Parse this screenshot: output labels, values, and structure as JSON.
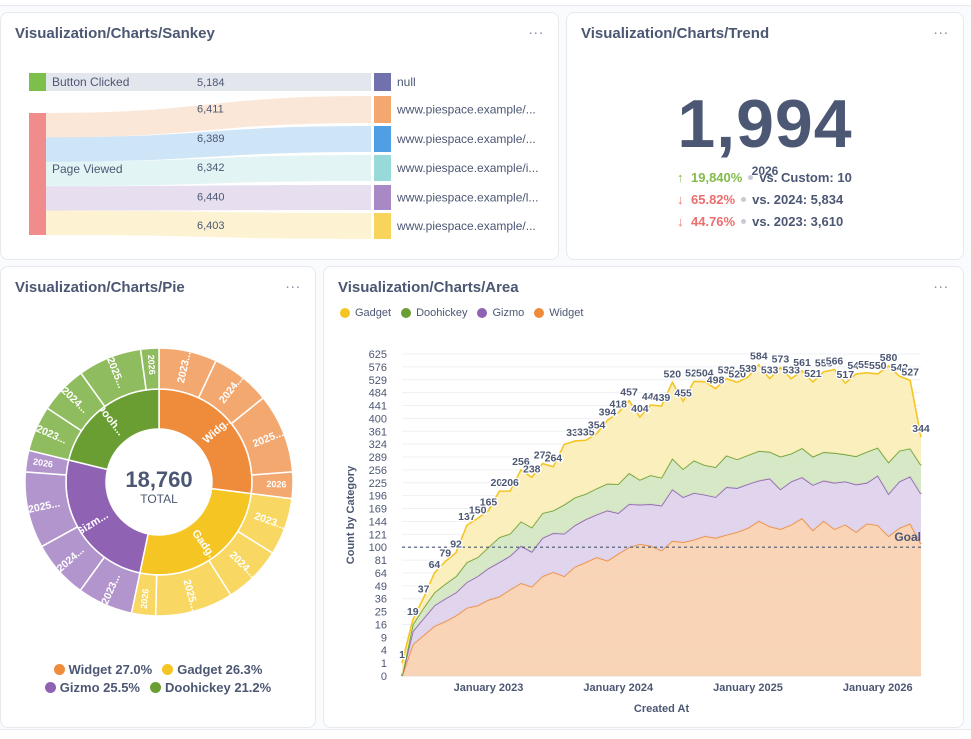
{
  "colors": {
    "widget": "#ef8c3c",
    "gadget": "#f5c524",
    "gizmo": "#9062b3",
    "doohickey": "#6a9e33",
    "up": "#84bb4c",
    "down": "#ed6e6e"
  },
  "sankey": {
    "title": "Visualization/Charts/Sankey",
    "menu": "...",
    "sources": [
      {
        "label": "Button Clicked",
        "color": "#7cc04b"
      },
      {
        "label": "Page Viewed",
        "color": "#f08c8c"
      }
    ],
    "flows": [
      {
        "value": "5,184"
      },
      {
        "value": "6,411"
      },
      {
        "value": "6,389"
      },
      {
        "value": "6,342"
      },
      {
        "value": "6,440"
      },
      {
        "value": "6,403"
      }
    ],
    "targets": [
      {
        "label": "null",
        "color": "#7172ad"
      },
      {
        "label": "www.piespace.example/...",
        "color": "#f2a86f"
      },
      {
        "label": "www.piespace.example/...",
        "color": "#509ee3"
      },
      {
        "label": "www.piespace.example/i...",
        "color": "#98d9d9"
      },
      {
        "label": "www.piespace.example/l...",
        "color": "#a989c5"
      },
      {
        "label": "www.piespace.example/...",
        "color": "#f9d45c"
      }
    ]
  },
  "trend": {
    "title": "Visualization/Charts/Trend",
    "menu": "...",
    "value": "1,994",
    "period": "2026",
    "comparisons": [
      {
        "arrow": "↑",
        "pct": "19,840%",
        "text": "vs. Custom: 10",
        "direction": "up"
      },
      {
        "arrow": "↓",
        "pct": "65.82%",
        "text": "vs. 2024: 5,834",
        "direction": "down"
      },
      {
        "arrow": "↓",
        "pct": "44.76%",
        "text": "vs. 2023: 3,610",
        "direction": "down"
      }
    ]
  },
  "pie": {
    "title": "Visualization/Charts/Pie",
    "menu": "...",
    "total_value": "18,760",
    "total_label": "TOTAL",
    "legend": [
      {
        "label": "Widget 27.0%",
        "color": "#ef8c3c"
      },
      {
        "label": "Gadget 26.3%",
        "color": "#f5c524"
      },
      {
        "label": "Gizmo 25.5%",
        "color": "#9062b3"
      },
      {
        "label": "Doohickey 21.2%",
        "color": "#6a9e33"
      }
    ],
    "inner": [
      {
        "label": "Widg...",
        "pct": 27.0,
        "color": "#ef8c3c"
      },
      {
        "label": "Gadg...",
        "pct": 26.3,
        "color": "#f5c524"
      },
      {
        "label": "Gizm...",
        "pct": 25.5,
        "color": "#9062b3"
      },
      {
        "label": "Dooh...",
        "pct": 21.2,
        "color": "#6a9e33"
      }
    ],
    "outer": [
      {
        "label": "2023...",
        "pct": 7.0,
        "color": "#f3a870"
      },
      {
        "label": "2024...",
        "pct": 7.2,
        "color": "#f3a870"
      },
      {
        "label": "2025...",
        "pct": 9.6,
        "color": "#f3a870"
      },
      {
        "label": "2026...",
        "pct": 3.2,
        "color": "#f3a870"
      },
      {
        "label": "2023...",
        "pct": 6.9,
        "color": "#f8d862"
      },
      {
        "label": "2024...",
        "pct": 7.1,
        "color": "#f8d862"
      },
      {
        "label": "2025...",
        "pct": 9.4,
        "color": "#f8d862"
      },
      {
        "label": "2026...",
        "pct": 2.9,
        "color": "#f8d862"
      },
      {
        "label": "2023...",
        "pct": 6.7,
        "color": "#b295cd"
      },
      {
        "label": "2024...",
        "pct": 7.0,
        "color": "#b295cd"
      },
      {
        "label": "2025...",
        "pct": 9.2,
        "color": "#b295cd"
      },
      {
        "label": "2026...",
        "pct": 2.6,
        "color": "#b295cd"
      },
      {
        "label": "2023...",
        "pct": 5.5,
        "color": "#8fbc5e"
      },
      {
        "label": "2024...",
        "pct": 5.8,
        "color": "#8fbc5e"
      },
      {
        "label": "2025...",
        "pct": 7.7,
        "color": "#8fbc5e"
      },
      {
        "label": "2026...",
        "pct": 2.2,
        "color": "#8fbc5e"
      }
    ]
  },
  "area": {
    "title": "Visualization/Charts/Area",
    "menu": "...",
    "legend": [
      {
        "label": "Gadget",
        "color": "#f5c524"
      },
      {
        "label": "Doohickey",
        "color": "#6a9e33"
      },
      {
        "label": "Gizmo",
        "color": "#9062b3"
      },
      {
        "label": "Widget",
        "color": "#ef8c3c"
      }
    ]
  },
  "chart_data": {
    "type": "area",
    "stacked": true,
    "title": "Visualization/Charts/Area",
    "xlabel": "Created At",
    "ylabel": "Count by Category",
    "yscale": "pow",
    "ylim": [
      0,
      625
    ],
    "y_ticks": [
      0,
      1,
      4,
      9,
      16,
      25,
      36,
      49,
      64,
      81,
      100,
      121,
      144,
      169,
      196,
      225,
      256,
      289,
      324,
      361,
      400,
      441,
      484,
      529,
      576,
      625
    ],
    "x_ticks": [
      {
        "label": "January 2023",
        "index": 8
      },
      {
        "label": "January 2024",
        "index": 20
      },
      {
        "label": "January 2025",
        "index": 32
      },
      {
        "label": "January 2026",
        "index": 44
      }
    ],
    "goal": {
      "value": 100,
      "label": "Goal"
    },
    "total_labels": [
      {
        "index": 0,
        "text": "1"
      },
      {
        "index": 1,
        "text": "19"
      },
      {
        "index": 2,
        "text": "37"
      },
      {
        "index": 3,
        "text": "64"
      },
      {
        "index": 4,
        "text": "79"
      },
      {
        "index": 5,
        "text": "92"
      },
      {
        "index": 6,
        "text": "137"
      },
      {
        "index": 7,
        "text": "150"
      },
      {
        "index": 8,
        "text": "165"
      },
      {
        "index": 9,
        "text": "206"
      },
      {
        "index": 10,
        "text": "206"
      },
      {
        "index": 11,
        "text": "256"
      },
      {
        "index": 12,
        "text": "238"
      },
      {
        "index": 13,
        "text": "272"
      },
      {
        "index": 14,
        "text": "264"
      },
      {
        "index": 16,
        "text": "333"
      },
      {
        "index": 17,
        "text": "335"
      },
      {
        "index": 18,
        "text": "354"
      },
      {
        "index": 19,
        "text": "394"
      },
      {
        "index": 20,
        "text": "418"
      },
      {
        "index": 21,
        "text": "457"
      },
      {
        "index": 22,
        "text": "404"
      },
      {
        "index": 23,
        "text": "443"
      },
      {
        "index": 24,
        "text": "439"
      },
      {
        "index": 25,
        "text": "520"
      },
      {
        "index": 26,
        "text": "455"
      },
      {
        "index": 27,
        "text": "523"
      },
      {
        "index": 28,
        "text": "504"
      },
      {
        "index": 29,
        "text": "498"
      },
      {
        "index": 30,
        "text": "533"
      },
      {
        "index": 31,
        "text": "520"
      },
      {
        "index": 32,
        "text": "539"
      },
      {
        "index": 33,
        "text": "584"
      },
      {
        "index": 34,
        "text": "533"
      },
      {
        "index": 35,
        "text": "573"
      },
      {
        "index": 36,
        "text": "533"
      },
      {
        "index": 37,
        "text": "561"
      },
      {
        "index": 38,
        "text": "521"
      },
      {
        "index": 39,
        "text": "558"
      },
      {
        "index": 40,
        "text": "566"
      },
      {
        "index": 41,
        "text": "517"
      },
      {
        "index": 42,
        "text": "545"
      },
      {
        "index": 43,
        "text": "554"
      },
      {
        "index": 44,
        "text": "550"
      },
      {
        "index": 45,
        "text": "580"
      },
      {
        "index": 46,
        "text": "542"
      },
      {
        "index": 47,
        "text": "527"
      },
      {
        "index": 48,
        "text": "344"
      }
    ],
    "series": [
      {
        "name": "Widget",
        "values": [
          0,
          6,
          10,
          15,
          18,
          22,
          28,
          30,
          35,
          38,
          45,
          52,
          48,
          60,
          65,
          60,
          72,
          78,
          85,
          80,
          90,
          100,
          105,
          102,
          95,
          110,
          108,
          112,
          118,
          115,
          120,
          125,
          132,
          145,
          135,
          130,
          138,
          150,
          128,
          145,
          130,
          138,
          125,
          140,
          137,
          118,
          132,
          140,
          105
        ]
      },
      {
        "name": "Gizmo",
        "values": [
          0,
          6,
          10,
          15,
          18,
          20,
          25,
          30,
          35,
          40,
          42,
          50,
          45,
          55,
          58,
          62,
          65,
          70,
          72,
          85,
          70,
          78,
          72,
          76,
          80,
          100,
          85,
          90,
          80,
          78,
          95,
          88,
          90,
          85,
          100,
          80,
          90,
          88,
          92,
          85,
          95,
          90,
          96,
          85,
          105,
          82,
          96,
          100,
          95
        ]
      },
      {
        "name": "Doohickey",
        "values": [
          0,
          4,
          8,
          12,
          15,
          18,
          25,
          25,
          30,
          38,
          35,
          42,
          40,
          45,
          42,
          55,
          55,
          52,
          55,
          58,
          62,
          70,
          55,
          65,
          62,
          75,
          65,
          78,
          70,
          70,
          78,
          70,
          72,
          75,
          68,
          80,
          70,
          75,
          70,
          72,
          75,
          68,
          70,
          78,
          72,
          75,
          78,
          72,
          68
        ]
      },
      {
        "name": "Gadget",
        "values": [
          1,
          3,
          9,
          22,
          28,
          32,
          59,
          65,
          65,
          90,
          84,
          112,
          105,
          112,
          99,
          146,
          141,
          135,
          142,
          171,
          196,
          209,
          172,
          200,
          202,
          235,
          197,
          243,
          254,
          235,
          240,
          237,
          245,
          279,
          230,
          283,
          235,
          248,
          231,
          256,
          266,
          221,
          259,
          251,
          236,
          305,
          236,
          215,
          76
        ]
      }
    ]
  }
}
